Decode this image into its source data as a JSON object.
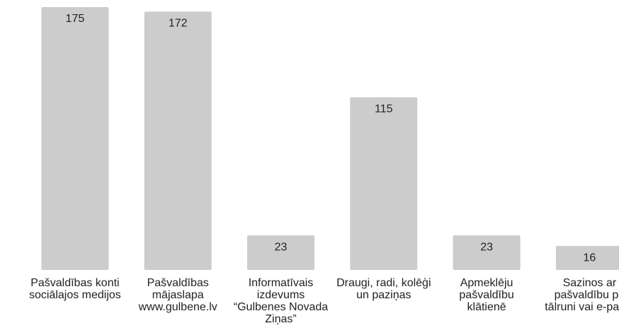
{
  "chart_data": {
    "type": "bar",
    "categories": [
      "Pašvaldības konti sociālajos medijos",
      "Pašvaldības mājaslapa www.gulbene.lv",
      "Informatīvais izdevums “Gulbenes Novada Ziņas”",
      "Draugi, radi, kolēģi un paziņas",
      "Apmeklēju pašvaldību klātienē",
      "Sazinos ar pašvaldību pa tālruni vai e-pastā"
    ],
    "values": [
      175,
      172,
      23,
      115,
      23,
      16
    ],
    "color": "#cccccc"
  }
}
